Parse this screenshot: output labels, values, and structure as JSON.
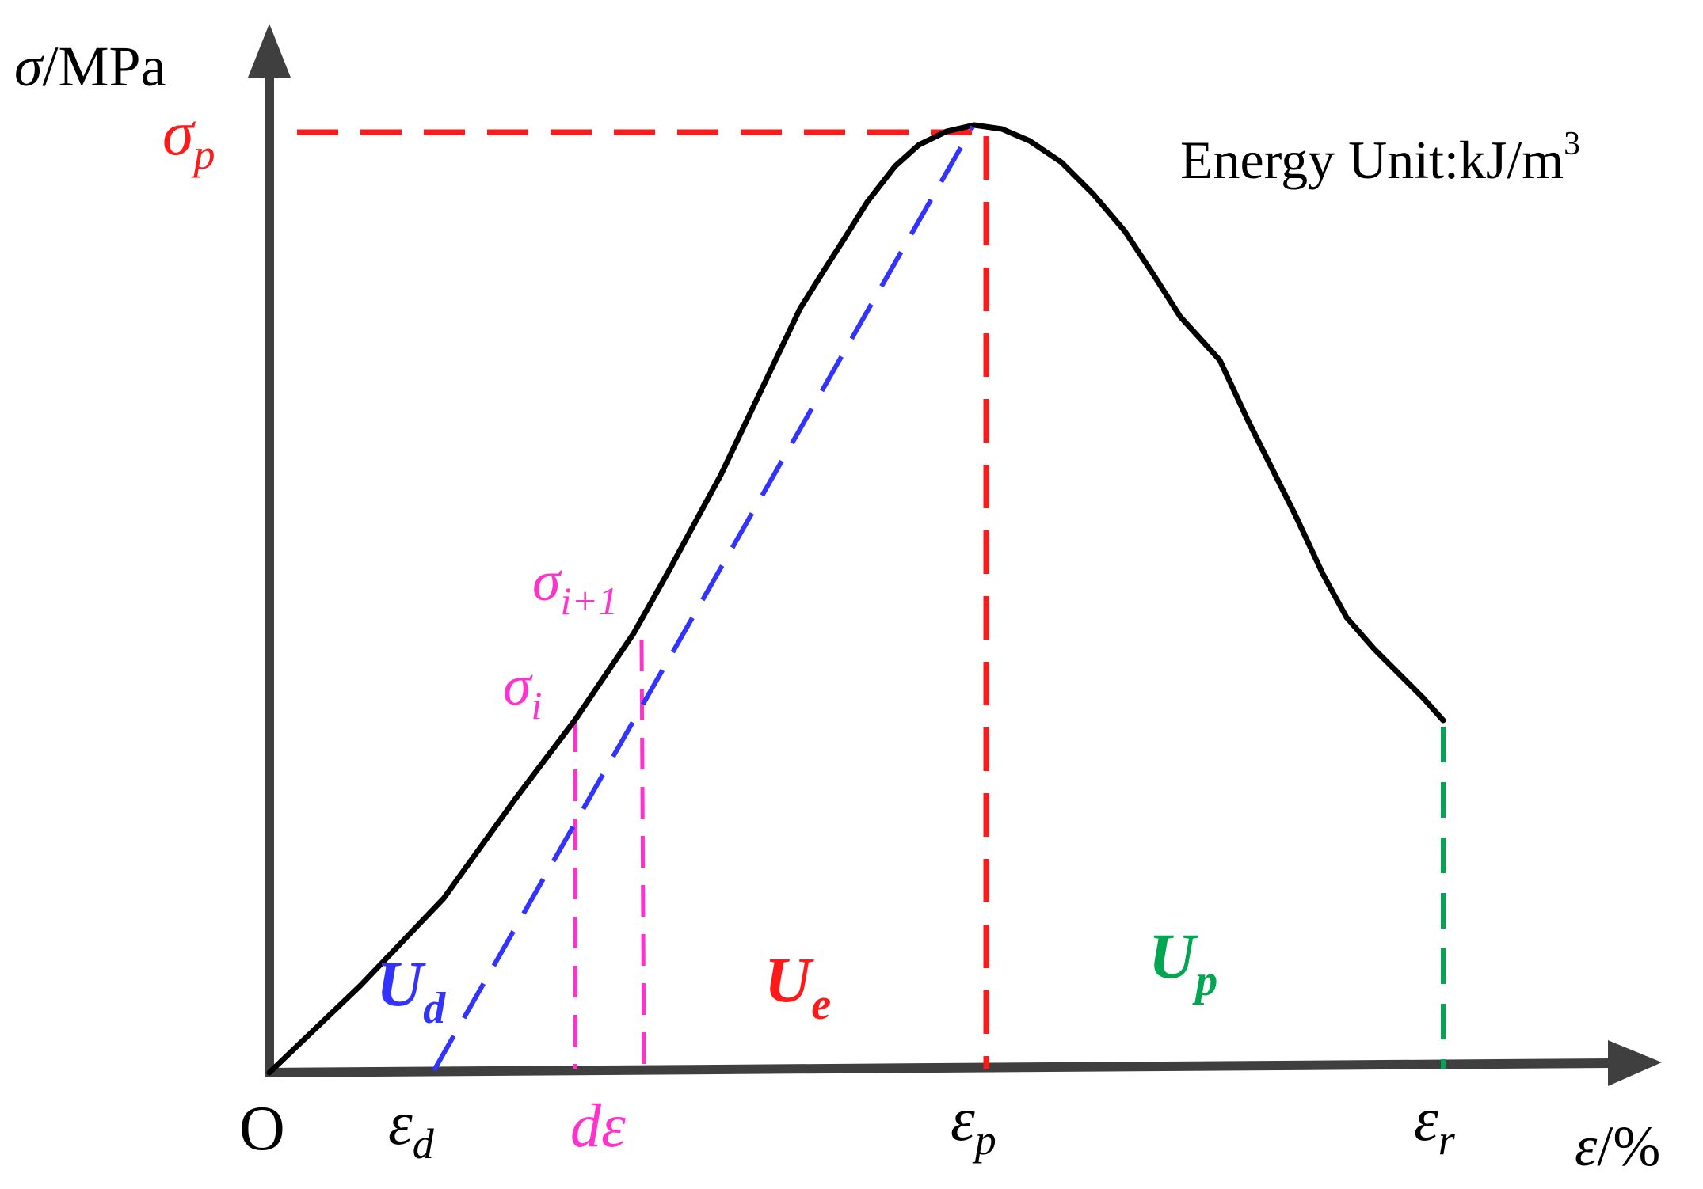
{
  "axes": {
    "y_label_symbol": "σ",
    "y_label_unit": "/MPa",
    "x_label_symbol": "ε",
    "x_label_unit": "/%",
    "origin": "O"
  },
  "note": {
    "text": "Energy Unit:kJ/m",
    "superscript": "3"
  },
  "peak_stress": {
    "symbol": "σ",
    "subscript": "p"
  },
  "stress_i": {
    "symbol": "σ",
    "subscript": "i"
  },
  "stress_i1": {
    "symbol": "σ",
    "subscript": "i+1"
  },
  "strain_d": {
    "symbol": "ε",
    "subscript": "d"
  },
  "strain_increment": "dε",
  "strain_p": {
    "symbol": "ε",
    "subscript": "p"
  },
  "strain_r": {
    "symbol": "ε",
    "subscript": "r"
  },
  "energy_labels": {
    "Ud": {
      "symbol": "U",
      "subscript": "d"
    },
    "Ue": {
      "symbol": "U",
      "subscript": "e"
    },
    "Up": {
      "symbol": "U",
      "subscript": "p"
    }
  },
  "colors": {
    "axis": "#3f3f3f",
    "curve": "#000000",
    "peak": "#ff1a1a",
    "dissipated": "#3333ff",
    "increment": "#ff33cc",
    "residual": "#00a650"
  }
}
